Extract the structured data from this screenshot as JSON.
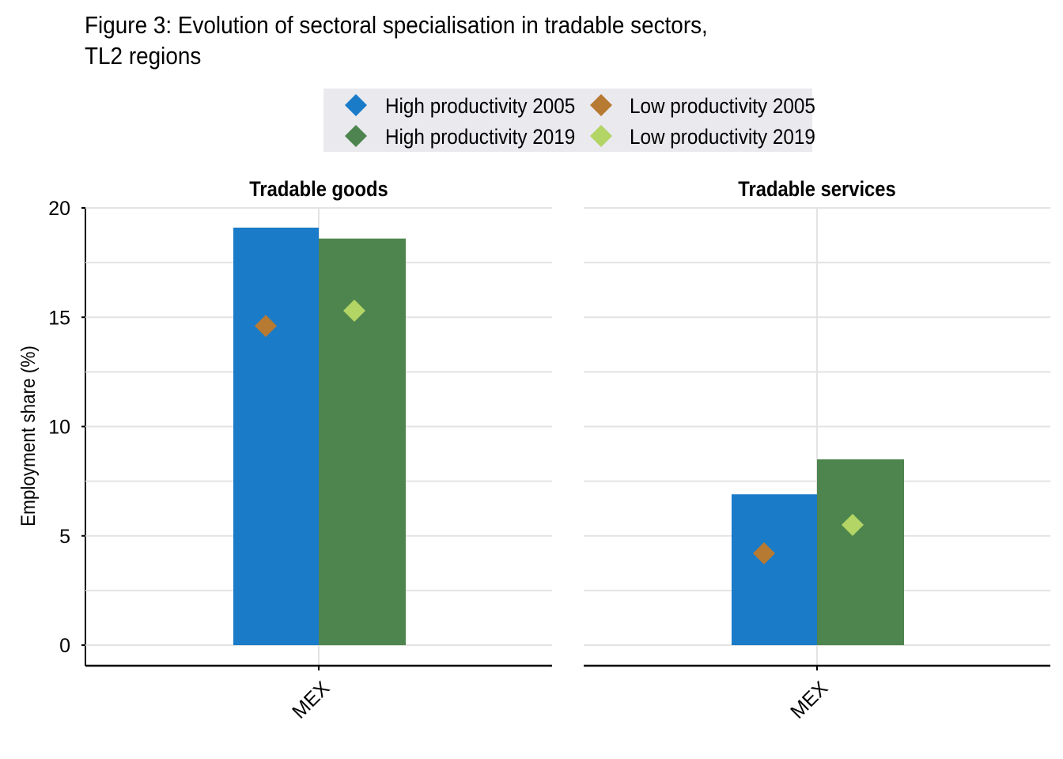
{
  "figure": {
    "title": "Figure 3: Evolution of sectoral specialisation in tradable sectors,\nTL2 regions"
  },
  "colors": {
    "high_2005": "#1a7bc8",
    "high_2019": "#4e854e",
    "low_2005": "#b77a33",
    "low_2019": "#b2d565",
    "legend_bg": "#e9e9ee",
    "grid": "#e3e3e3",
    "axis": "#000000"
  },
  "legend": {
    "items": [
      {
        "label": "High productivity 2005",
        "key": "high_2005"
      },
      {
        "label": "Low productivity 2005",
        "key": "low_2005"
      },
      {
        "label": "High productivity 2019",
        "key": "high_2019"
      },
      {
        "label": "Low productivity 2019",
        "key": "low_2019"
      }
    ]
  },
  "chart_data": {
    "type": "bar",
    "ylabel": "Employment share (%)",
    "ylim": [
      0,
      20
    ],
    "yticks": [
      0,
      5,
      10,
      15,
      20
    ],
    "grid": true,
    "legend_position": "top-center",
    "panels": [
      {
        "title": "Tradable goods",
        "categories": [
          "MEX"
        ],
        "bars": [
          {
            "name": "High productivity 2005",
            "key": "high_2005",
            "values": [
              19.1
            ]
          },
          {
            "name": "High productivity 2019",
            "key": "high_2019",
            "values": [
              18.6
            ]
          }
        ],
        "markers": [
          {
            "name": "Low productivity 2005",
            "key": "low_2005",
            "values": [
              14.6
            ]
          },
          {
            "name": "Low productivity 2019",
            "key": "low_2019",
            "values": [
              15.3
            ]
          }
        ]
      },
      {
        "title": "Tradable services",
        "categories": [
          "MEX"
        ],
        "bars": [
          {
            "name": "High productivity 2005",
            "key": "high_2005",
            "values": [
              6.9
            ]
          },
          {
            "name": "High productivity 2019",
            "key": "high_2019",
            "values": [
              8.5
            ]
          }
        ],
        "markers": [
          {
            "name": "Low productivity 2005",
            "key": "low_2005",
            "values": [
              4.2
            ]
          },
          {
            "name": "Low productivity 2019",
            "key": "low_2019",
            "values": [
              5.5
            ]
          }
        ]
      }
    ]
  }
}
